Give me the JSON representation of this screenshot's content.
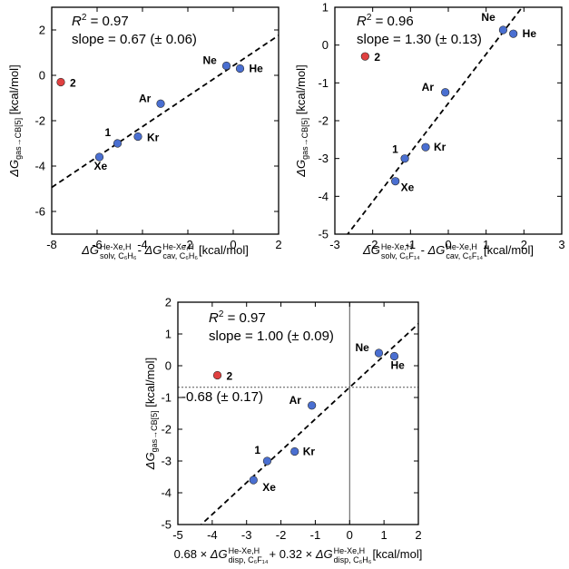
{
  "chart_data": [
    {
      "type": "scatter",
      "xlim": [
        -8,
        2
      ],
      "ylim": [
        -7,
        3
      ],
      "xticks": [
        -8,
        -6,
        -4,
        -2,
        0,
        2
      ],
      "yticks": [
        -6,
        -4,
        -2,
        0,
        2
      ],
      "r2": "R² = 0.97",
      "slope": "slope = 0.67 (± 0.06)",
      "xlabel": {
        "main": "ΔG",
        "sup1": "He-Xe,H",
        "sub1": "solv, C₆H₆",
        "mid": " - ΔG",
        "sup2": "He-Xe,H",
        "sub2": "cav, C₆H₆",
        "unit": " [kcal/mol]"
      },
      "ylabel": {
        "main": "ΔG",
        "sub": "gas→CB[5]",
        "unit": " [kcal/mol]"
      },
      "fit": {
        "slope": 0.67,
        "intercept": 0.42
      },
      "points": [
        {
          "label": "Ne",
          "x": -0.3,
          "y": 0.42,
          "color": "#4a6fd1"
        },
        {
          "label": "He",
          "x": 0.3,
          "y": 0.3,
          "color": "#4a6fd1"
        },
        {
          "label": "Ar",
          "x": -3.2,
          "y": -1.25,
          "color": "#4a6fd1"
        },
        {
          "label": "Kr",
          "x": -4.2,
          "y": -2.7,
          "color": "#4a6fd1"
        },
        {
          "label": "1",
          "x": -5.1,
          "y": -3.0,
          "color": "#4a6fd1"
        },
        {
          "label": "Xe",
          "x": -5.9,
          "y": -3.6,
          "color": "#4a6fd1"
        },
        {
          "label": "2",
          "x": -7.6,
          "y": -0.3,
          "color": "#e04040"
        }
      ]
    },
    {
      "type": "scatter",
      "xlim": [
        -3,
        3
      ],
      "ylim": [
        -5,
        1
      ],
      "xticks": [
        -3,
        -2,
        -1,
        0,
        1,
        2,
        3
      ],
      "yticks": [
        -5,
        -4,
        -3,
        -2,
        -1,
        0,
        1
      ],
      "r2": "R² = 0.96",
      "slope": "slope = 1.30 (± 0.13)",
      "xlabel": {
        "main": "ΔG",
        "sup1": "He-Xe,H",
        "sub1": "solv, C₆F₁₄",
        "mid": " - ΔG",
        "sup2": "He-Xe,H",
        "sub2": "cav, C₆F₁₄",
        "unit": " [kcal/mol]"
      },
      "ylabel": {
        "main": "ΔG",
        "sub": "gas→CB[5]",
        "unit": " [kcal/mol]"
      },
      "fit": {
        "slope": 1.3,
        "intercept": -1.54
      },
      "points": [
        {
          "label": "Ne",
          "x": 1.45,
          "y": 0.4,
          "color": "#4a6fd1"
        },
        {
          "label": "He",
          "x": 1.72,
          "y": 0.3,
          "color": "#4a6fd1"
        },
        {
          "label": "Ar",
          "x": -0.08,
          "y": -1.25,
          "color": "#4a6fd1"
        },
        {
          "label": "Kr",
          "x": -0.6,
          "y": -2.7,
          "color": "#4a6fd1"
        },
        {
          "label": "1",
          "x": -1.15,
          "y": -3.0,
          "color": "#4a6fd1"
        },
        {
          "label": "Xe",
          "x": -1.4,
          "y": -3.6,
          "color": "#4a6fd1"
        },
        {
          "label": "2",
          "x": -2.2,
          "y": -0.3,
          "color": "#e04040"
        }
      ]
    },
    {
      "type": "scatter",
      "xlim": [
        -5,
        2
      ],
      "ylim": [
        -5,
        2
      ],
      "xticks": [
        -5,
        -4,
        -3,
        -2,
        -1,
        0,
        1,
        2
      ],
      "yticks": [
        -5,
        -4,
        -3,
        -2,
        -1,
        0,
        1,
        2
      ],
      "r2": "R² = 0.97",
      "slope": "slope = 1.00 (± 0.09)",
      "intercept_label": "-0.68 (± 0.17)",
      "xlabel": {
        "main": "0.68 × ΔG",
        "sup1": "He-Xe,H",
        "sub1": "disp, C₆F₁₄",
        "mid": " + 0.32 × ΔG",
        "sup2": "He-Xe,H",
        "sub2": "disp, C₆H₆",
        "unit": " [kcal/mol]"
      },
      "ylabel": {
        "main": "ΔG",
        "sub": "gas→CB[5]",
        "unit": " [kcal/mol]"
      },
      "fit": {
        "slope": 1.0,
        "intercept": -0.68
      },
      "refline_x": 0,
      "refline_y": -0.68,
      "points": [
        {
          "label": "Ne",
          "x": 0.85,
          "y": 0.4,
          "color": "#4a6fd1"
        },
        {
          "label": "He",
          "x": 1.3,
          "y": 0.3,
          "color": "#4a6fd1"
        },
        {
          "label": "Ar",
          "x": -1.1,
          "y": -1.25,
          "color": "#4a6fd1"
        },
        {
          "label": "Kr",
          "x": -1.6,
          "y": -2.7,
          "color": "#4a6fd1"
        },
        {
          "label": "1",
          "x": -2.4,
          "y": -3.0,
          "color": "#4a6fd1"
        },
        {
          "label": "Xe",
          "x": -2.8,
          "y": -3.6,
          "color": "#4a6fd1"
        },
        {
          "label": "2",
          "x": -3.85,
          "y": -0.3,
          "color": "#e04040"
        }
      ]
    }
  ]
}
